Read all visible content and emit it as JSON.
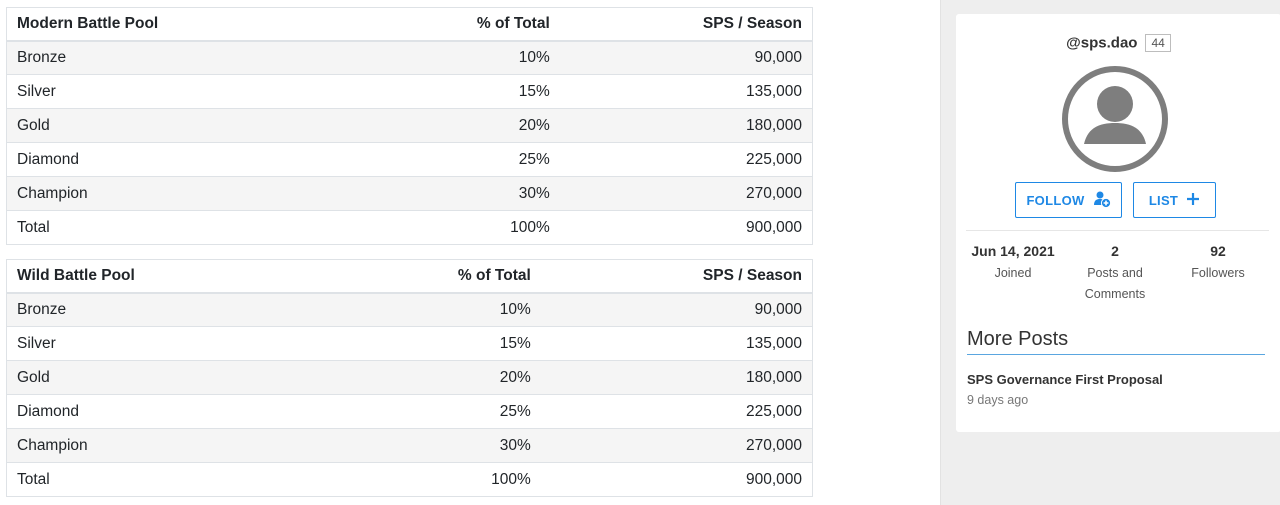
{
  "tables": {
    "modern": {
      "headers": [
        "Modern Battle Pool",
        "% of Total",
        "SPS / Season"
      ],
      "rows": [
        [
          "Bronze",
          "10%",
          "90,000"
        ],
        [
          "Silver",
          "15%",
          "135,000"
        ],
        [
          "Gold",
          "20%",
          "180,000"
        ],
        [
          "Diamond",
          "25%",
          "225,000"
        ],
        [
          "Champion",
          "30%",
          "270,000"
        ],
        [
          "Total",
          "100%",
          "900,000"
        ]
      ]
    },
    "wild": {
      "headers": [
        "Wild Battle Pool",
        "% of Total",
        "SPS / Season"
      ],
      "rows": [
        [
          "Bronze",
          "10%",
          "90,000"
        ],
        [
          "Silver",
          "15%",
          "135,000"
        ],
        [
          "Gold",
          "20%",
          "180,000"
        ],
        [
          "Diamond",
          "25%",
          "225,000"
        ],
        [
          "Champion",
          "30%",
          "270,000"
        ],
        [
          "Total",
          "100%",
          "900,000"
        ]
      ]
    }
  },
  "profile": {
    "handle": "@sps.dao",
    "reputation": "44",
    "avatar_icon": "default-user-avatar-icon",
    "follow_label": "FOLLOW",
    "follow_icon": "add-person-icon",
    "list_label": "LIST",
    "list_icon": "plus-icon",
    "accent_color": "#1e88e5",
    "stats": {
      "joined_value": "Jun 14, 2021",
      "joined_label": "Joined",
      "posts_value": "2",
      "posts_label": "Posts and Comments",
      "followers_value": "92",
      "followers_label": "Followers"
    }
  },
  "more_posts": {
    "title": "More Posts",
    "items": [
      {
        "title": "SPS Governance First Proposal",
        "time": "9 days ago"
      }
    ]
  }
}
